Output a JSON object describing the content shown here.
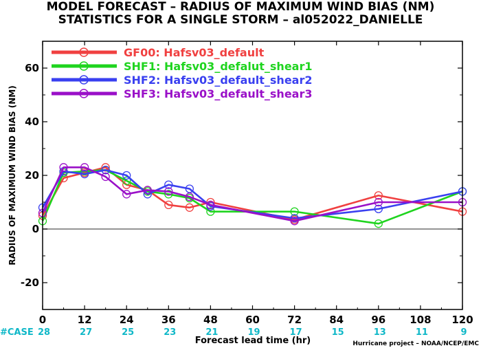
{
  "chart_data": {
    "type": "line",
    "title": "MODEL FORECAST – RADIUS OF MAXIMUM WIND BIAS (NM)",
    "subtitle": "STATISTICS FOR A SINGLE STORM – al052022_DANIELLE",
    "xlabel": "Forecast lead time (hr)",
    "ylabel": "RADIUS OF MAXIMUM WIND BIAS (NM)",
    "xlim": [
      0,
      120
    ],
    "ylim": [
      -30,
      70
    ],
    "x_ticks": [
      0,
      12,
      24,
      36,
      48,
      60,
      72,
      84,
      96,
      108,
      120
    ],
    "y_ticks": [
      -20,
      0,
      20,
      40,
      60
    ],
    "case_label": "#CASE",
    "cases": [
      28,
      27,
      25,
      23,
      21,
      19,
      17,
      15,
      13,
      11,
      9
    ],
    "credit": "Hurricane project – NOAA/NCEP/EMC",
    "legend_position": "top-left",
    "series": [
      {
        "name": "GF00:  Hafsv03_default",
        "color": "#f04040",
        "x": [
          0,
          6,
          12,
          18,
          24,
          30,
          36,
          42,
          48,
          72,
          96,
          120
        ],
        "y": [
          5,
          19,
          21,
          23,
          16.5,
          14.5,
          9,
          8,
          10,
          3.5,
          12.5,
          6.5
        ]
      },
      {
        "name": "SHF1:  Hafsv03_defalut_shear1",
        "color": "#1fd41f",
        "x": [
          0,
          6,
          12,
          18,
          24,
          30,
          36,
          42,
          48,
          72,
          96,
          120
        ],
        "y": [
          3,
          21,
          21.5,
          22,
          18,
          14,
          13,
          11.5,
          6.5,
          6.5,
          2,
          14
        ]
      },
      {
        "name": "SHF2:  Hafsv03_default_shear2",
        "color": "#3a40f0",
        "x": [
          0,
          6,
          12,
          18,
          24,
          30,
          36,
          42,
          48,
          72,
          96,
          120
        ],
        "y": [
          8,
          21.5,
          20.5,
          22,
          20,
          13,
          16.5,
          15,
          8.5,
          4,
          7.5,
          14
        ]
      },
      {
        "name": "SHF3:  Hafsv03_default_shear3",
        "color": "#9a10c8",
        "x": [
          0,
          6,
          12,
          18,
          24,
          30,
          36,
          42,
          48,
          72,
          96,
          120
        ],
        "y": [
          6,
          23,
          23,
          19.5,
          13,
          14.5,
          14,
          12,
          9,
          3,
          10,
          10
        ]
      }
    ],
    "colors": {
      "case_text": "#10b8c8",
      "zero_line": "#707070",
      "axis": "#000000"
    }
  }
}
